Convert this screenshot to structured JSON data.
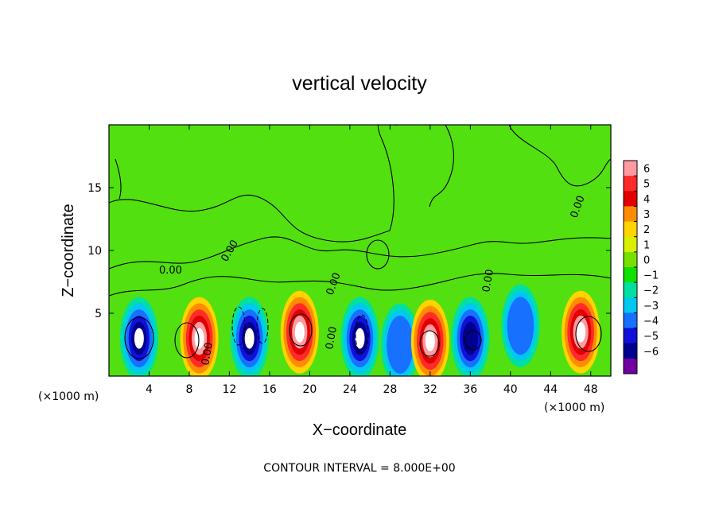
{
  "chart_data": {
    "type": "heatmap",
    "title": "vertical velocity",
    "xlabel": "X−coordinate",
    "ylabel": "Z−coordinate",
    "x_unit": "(×1000 m)",
    "y_unit": "(×1000 m)",
    "xlim": [
      0,
      50
    ],
    "ylim": [
      0,
      20
    ],
    "x_ticks": [
      4,
      8,
      12,
      16,
      20,
      24,
      28,
      32,
      36,
      40,
      44,
      48
    ],
    "y_ticks": [
      5,
      10,
      15
    ],
    "colorbar": {
      "levels": [
        6,
        5,
        4,
        3,
        2,
        1,
        0,
        -1,
        -2,
        -3,
        -4,
        -5,
        -6
      ],
      "labels": [
        "6",
        "5",
        "4",
        "3",
        "2",
        "1",
        "0",
        "−1",
        "−2",
        "−3",
        "−4",
        "−5",
        "−6"
      ],
      "colors": [
        "#ff9aa0",
        "#ff2a2a",
        "#e00000",
        "#ff8c00",
        "#ffd400",
        "#d8f000",
        "#78e000",
        "#10e000",
        "#00e0a0",
        "#00c8f0",
        "#1870ff",
        "#1010d8",
        "#000090",
        "#7000a0"
      ]
    },
    "contour_labels": [
      "0.00",
      "0.00",
      "0.00",
      "0.00",
      "0.00",
      "0.00",
      "0.00"
    ],
    "cells": [
      {
        "x": 3,
        "z": 3.0,
        "value": -8
      },
      {
        "x": 9,
        "z": 3.0,
        "value": 8
      },
      {
        "x": 14,
        "z": 3.0,
        "value": -8
      },
      {
        "x": 19,
        "z": 3.5,
        "value": 8
      },
      {
        "x": 25,
        "z": 3.0,
        "value": -8
      },
      {
        "x": 29,
        "z": 2.5,
        "value": -4
      },
      {
        "x": 32,
        "z": 2.8,
        "value": 8
      },
      {
        "x": 36,
        "z": 3.0,
        "value": -7
      },
      {
        "x": 41,
        "z": 4.0,
        "value": -4
      },
      {
        "x": 47,
        "z": 3.5,
        "value": 8
      }
    ],
    "background_value": 0.4
  },
  "contour_note": "CONTOUR INTERVAL = 8.000E+00"
}
